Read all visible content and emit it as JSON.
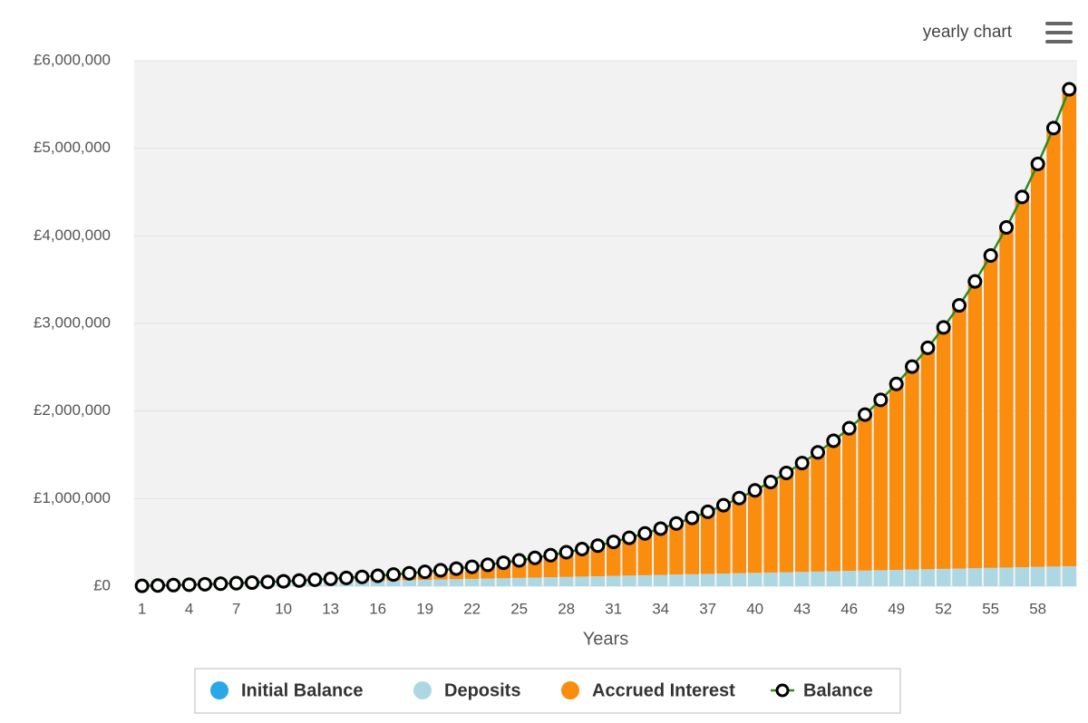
{
  "chart_data": {
    "type": "bar",
    "stacked": true,
    "context_menu_label": "yearly chart",
    "xlabel": "Years",
    "categories": [
      1,
      null,
      null,
      4,
      null,
      null,
      7,
      null,
      null,
      10,
      null,
      null,
      13,
      null,
      null,
      16,
      null,
      null,
      19,
      null,
      null,
      22,
      null,
      null,
      25,
      null,
      null,
      28,
      null,
      null,
      31,
      null,
      null,
      34,
      null,
      null,
      37,
      null,
      null,
      40,
      null,
      null,
      43,
      null,
      null,
      46,
      null,
      null,
      49,
      null,
      null,
      52,
      null,
      null,
      55,
      null,
      null,
      58,
      null,
      null
    ],
    "ylim": [
      0,
      6000000
    ],
    "yticks": [
      {
        "value": 0,
        "label": "£0"
      },
      {
        "value": 1000000,
        "label": "£1,000,000"
      },
      {
        "value": 2000000,
        "label": "£2,000,000"
      },
      {
        "value": 3000000,
        "label": "£3,000,000"
      },
      {
        "value": 4000000,
        "label": "£4,000,000"
      },
      {
        "value": 5000000,
        "label": "£5,000,000"
      },
      {
        "value": 6000000,
        "label": "£6,000,000"
      }
    ],
    "grid": true,
    "series": [
      {
        "name": "Initial Balance",
        "color": "#2ba6e9",
        "values": [
          0,
          0,
          0,
          0,
          0,
          0,
          0,
          0,
          0,
          0,
          0,
          0,
          0,
          0,
          0,
          0,
          0,
          0,
          0,
          0,
          0,
          0,
          0,
          0,
          0,
          0,
          0,
          0,
          0,
          0,
          0,
          0,
          0,
          0,
          0,
          0,
          0,
          0,
          0,
          0,
          0,
          0,
          0,
          0,
          0,
          0,
          0,
          0,
          0,
          0,
          0,
          0,
          0,
          0,
          0,
          0,
          0,
          0,
          0,
          0
        ]
      },
      {
        "name": "Deposits",
        "color": "#add8e3",
        "values": [
          3800,
          7600,
          11400,
          15200,
          19000,
          22800,
          26600,
          30400,
          34200,
          38000,
          41800,
          45600,
          49400,
          53200,
          57000,
          60800,
          64600,
          68400,
          72200,
          76000,
          79800,
          83600,
          87400,
          91200,
          95000,
          98800,
          102600,
          106400,
          110200,
          114000,
          117800,
          121600,
          125400,
          129200,
          133000,
          136800,
          140600,
          144400,
          148200,
          152000,
          155800,
          159600,
          163400,
          167200,
          171000,
          174800,
          178600,
          182400,
          186200,
          190000,
          193800,
          197600,
          201400,
          205200,
          209000,
          212800,
          216600,
          220400,
          224200,
          228000
        ]
      },
      {
        "name": "Accrued Interest",
        "color": "#fa8c0e",
        "values": [
          0,
          321,
          986,
          2027,
          3474,
          5361,
          7727,
          10608,
          14055,
          18109,
          22822,
          28251,
          34453,
          41497,
          49450,
          58393,
          68404,
          79578,
          92010,
          105802,
          121075,
          137949,
          156560,
          177053,
          199586,
          224331,
          251474,
          281217,
          313771,
          349418,
          388323,
          430846,
          477261,
          527882,
          583072,
          643239,
          708744,
          780084,
          857757,
          942262,
          1034186,
          1134116,
          1242823,
          1360940,
          1489280,
          1628749,
          1780252,
          1944827,
          2123517,
          2317497,
          2528125,
          2756803,
          3004979,
          3274281,
          3566563,
          3883728,
          4227852,
          4601066,
          5006218,
          5445750
        ]
      },
      {
        "name": "Balance",
        "type": "line",
        "color": "#2e8b1e",
        "values": [
          3800,
          7921,
          12386,
          17227,
          22474,
          28161,
          34327,
          41008,
          48255,
          56109,
          64622,
          73851,
          83853,
          94697,
          106450,
          119193,
          133004,
          147978,
          164210,
          181802,
          200875,
          221549,
          243960,
          268253,
          294586,
          323131,
          354074,
          387617,
          423971,
          463418,
          506123,
          552446,
          602661,
          657082,
          716072,
          780039,
          849344,
          924484,
          1005957,
          1094262,
          1189986,
          1293716,
          1406223,
          1528140,
          1660280,
          1803549,
          1958852,
          2127227,
          2309717,
          2507497,
          2721925,
          2954403,
          3206379,
          3479481,
          3775563,
          4096528,
          4444452,
          4821466,
          5230418,
          5673750
        ]
      }
    ]
  }
}
